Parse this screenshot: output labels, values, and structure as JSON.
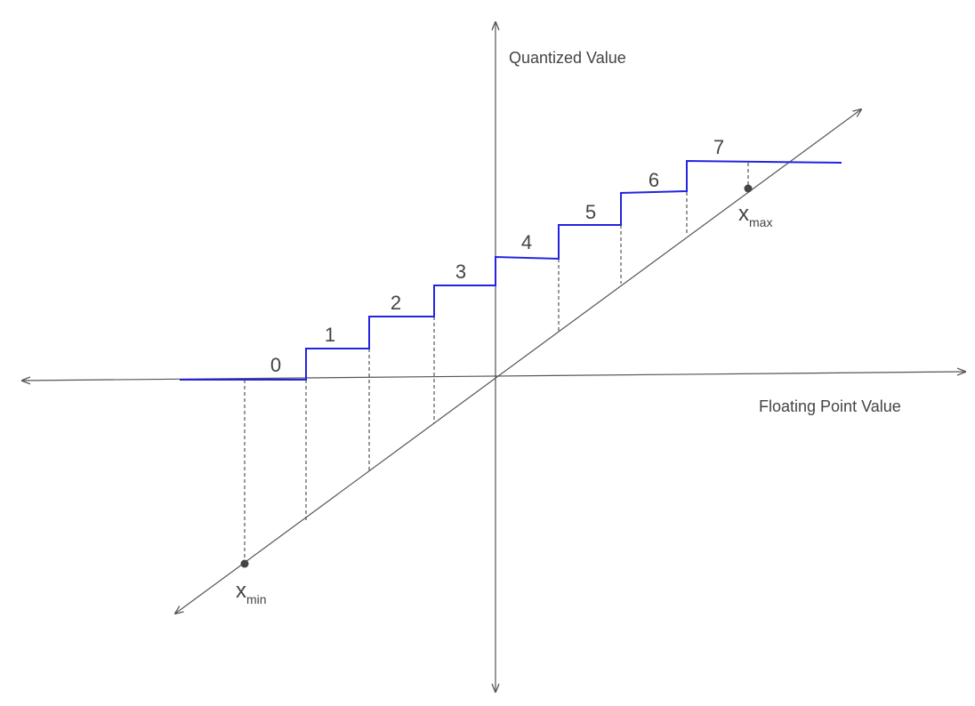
{
  "axes": {
    "vertical_label": "Quantized Value",
    "horizontal_label": "Floating Point Value"
  },
  "levels": [
    "0",
    "1",
    "2",
    "3",
    "4",
    "5",
    "6",
    "7"
  ],
  "points": {
    "min": {
      "base": "x",
      "sub": "min"
    },
    "max": {
      "base": "x",
      "sub": "max"
    }
  }
}
